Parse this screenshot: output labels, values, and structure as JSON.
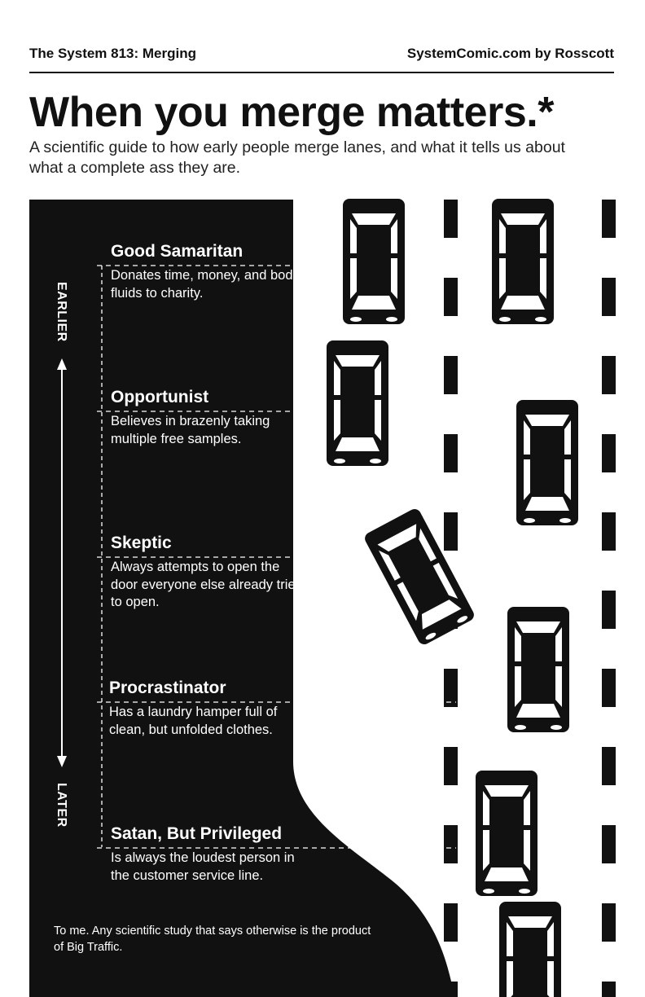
{
  "header": {
    "left": "The System 813: Merging",
    "right": "SystemComic.com by Rosscott"
  },
  "title": "When you merge matters.*",
  "subtitle": "A scientific guide to how early people merge lanes, and what it tells us about what a complete ass they are.",
  "axis": {
    "earlier": "EARLIER",
    "later": "LATER"
  },
  "types": [
    {
      "name": "Good Samaritan",
      "desc": "Donates time, money, and bodily fluids to charity."
    },
    {
      "name": "Opportunist",
      "desc": "Believes in brazenly taking multiple free samples."
    },
    {
      "name": "Skeptic",
      "desc": "Always attempts to open the door everyone else already tried to open."
    },
    {
      "name": "Procrastinator",
      "desc": "Has a laundry hamper full of clean, but unfolded clothes."
    },
    {
      "name": "Satan, But Privileged",
      "desc": "Is always the loudest person in the customer service line."
    }
  ],
  "footnote": "To me. Any scientific study that says otherwise is the product of Big Traffic.",
  "colors": {
    "ink": "#111111",
    "paper": "#ffffff"
  }
}
